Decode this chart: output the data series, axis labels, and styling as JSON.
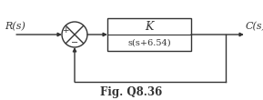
{
  "title": "Fig. Q8.36",
  "R_label": "R(s)",
  "C_label": "C(s)",
  "tf_numerator": "K",
  "tf_denominator": "s(s+6.54)",
  "plus_sign": "+",
  "minus_sign": "−",
  "line_color": "#333333",
  "bg_color": "#ffffff",
  "fig_width": 2.89,
  "fig_height": 1.1,
  "dpi": 100
}
